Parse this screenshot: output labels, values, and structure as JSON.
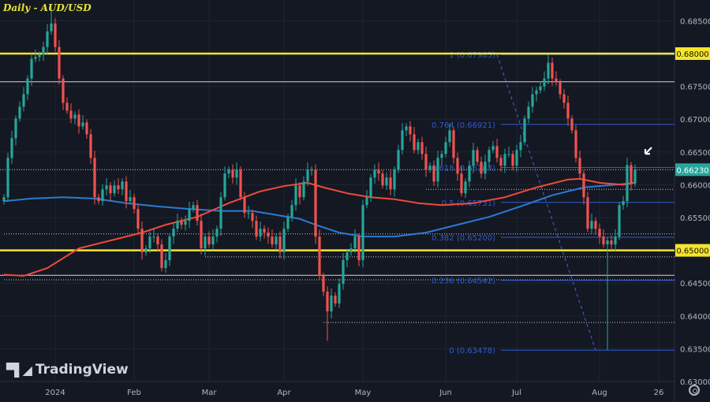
{
  "header": {
    "title": "Daily - AUD/USD"
  },
  "branding": {
    "logo_text": "TradingView"
  },
  "chart_data": {
    "type": "candlestick",
    "title": "Daily - AUD/USD",
    "ylim": [
      0.6275,
      0.6885
    ],
    "y_ticks": [
      "0.68500",
      "0.68000",
      "0.67500",
      "0.67000",
      "0.66500",
      "0.66000",
      "0.65500",
      "0.65000",
      "0.64500",
      "0.64000",
      "0.63500",
      "0.63000"
    ],
    "x_ticks": [
      {
        "label": "2024",
        "index": 13
      },
      {
        "label": "Feb",
        "index": 33
      },
      {
        "label": "Mar",
        "index": 52
      },
      {
        "label": "Apr",
        "index": 71
      },
      {
        "label": "May",
        "index": 91
      },
      {
        "label": "Jun",
        "index": 112
      },
      {
        "label": "Jul",
        "index": 130
      },
      {
        "label": "Aug",
        "index": 151
      },
      {
        "label": "26",
        "index": 166
      }
    ],
    "colors": {
      "up": "#26a69a",
      "down": "#ef5350",
      "ma_red": "#f04a3c",
      "ma_blue": "#2a7bd4",
      "key_level": "#f5e52a",
      "fib": "#2f5bd1",
      "background": "#141823"
    },
    "close": [
      0.6581,
      0.6641,
      0.6671,
      0.6701,
      0.6719,
      0.6738,
      0.6762,
      0.6792,
      0.6795,
      0.6798,
      0.681,
      0.6834,
      0.6846,
      0.681,
      0.6762,
      0.6725,
      0.6713,
      0.6701,
      0.6707,
      0.6689,
      0.6695,
      0.6677,
      0.6641,
      0.6581,
      0.6575,
      0.6593,
      0.6599,
      0.6587,
      0.6599,
      0.6593,
      0.6605,
      0.6575,
      0.6581,
      0.6563,
      0.6533,
      0.6497,
      0.6503,
      0.6521,
      0.6521,
      0.6509,
      0.6473,
      0.6485,
      0.6521,
      0.6533,
      0.6545,
      0.6539,
      0.6545,
      0.6563,
      0.6569,
      0.6545,
      0.6503,
      0.6521,
      0.6509,
      0.6521,
      0.6533,
      0.6581,
      0.6617,
      0.6623,
      0.6611,
      0.6623,
      0.6581,
      0.6557,
      0.6557,
      0.6545,
      0.6521,
      0.6533,
      0.6527,
      0.6521,
      0.6509,
      0.6521,
      0.6497,
      0.6533,
      0.6551,
      0.6569,
      0.6599,
      0.6581,
      0.6605,
      0.6623,
      0.6623,
      0.6521,
      0.6461,
      0.6437,
      0.6407,
      0.6431,
      0.6419,
      0.6449,
      0.6485,
      0.6497,
      0.6503,
      0.6521,
      0.6485,
      0.6569,
      0.6581,
      0.6611,
      0.6623,
      0.6617,
      0.6599,
      0.6611,
      0.6593,
      0.6623,
      0.6653,
      0.6683,
      0.6689,
      0.6677,
      0.6653,
      0.6665,
      0.6647,
      0.6623,
      0.6629,
      0.6605,
      0.6641,
      0.6647,
      0.6665,
      0.6683,
      0.6641,
      0.6617,
      0.6587,
      0.6605,
      0.6629,
      0.6653,
      0.6635,
      0.6617,
      0.6635,
      0.6653,
      0.6659,
      0.6641,
      0.6629,
      0.6647,
      0.6647,
      0.6629,
      0.6653,
      0.6665,
      0.6701,
      0.6719,
      0.6738,
      0.6744,
      0.675,
      0.6762,
      0.6786,
      0.6762,
      0.6756,
      0.6738,
      0.6725,
      0.6701,
      0.6683,
      0.6641,
      0.6617,
      0.6581,
      0.6533,
      0.6545,
      0.6533,
      0.6521,
      0.6509,
      0.6515,
      0.6509,
      0.6521,
      0.6569,
      0.6575,
      0.663,
      0.6602,
      0.6623
    ],
    "wick_extremes": [
      {
        "index": 12,
        "high": 0.6871
      },
      {
        "index": 82,
        "low": 0.6362
      },
      {
        "index": 138,
        "high": 0.6798
      },
      {
        "index": 153,
        "low": 0.6348
      }
    ],
    "ma_red": [
      [
        0,
        0.6463
      ],
      [
        5,
        0.6461
      ],
      [
        11,
        0.6473
      ],
      [
        19,
        0.6503
      ],
      [
        27,
        0.6515
      ],
      [
        35,
        0.6527
      ],
      [
        41,
        0.6539
      ],
      [
        49,
        0.6551
      ],
      [
        57,
        0.6572
      ],
      [
        65,
        0.659
      ],
      [
        71,
        0.6598
      ],
      [
        77,
        0.6603
      ],
      [
        81,
        0.6596
      ],
      [
        87,
        0.6587
      ],
      [
        93,
        0.6581
      ],
      [
        99,
        0.6578
      ],
      [
        105,
        0.6572
      ],
      [
        111,
        0.6569
      ],
      [
        119,
        0.6572
      ],
      [
        127,
        0.6581
      ],
      [
        135,
        0.6596
      ],
      [
        143,
        0.6608
      ],
      [
        146,
        0.6609
      ],
      [
        151,
        0.6603
      ],
      [
        157,
        0.66
      ],
      [
        160,
        0.6603
      ]
    ],
    "ma_blue": [
      [
        0,
        0.6575
      ],
      [
        7,
        0.6579
      ],
      [
        15,
        0.6581
      ],
      [
        23,
        0.6579
      ],
      [
        31,
        0.6572
      ],
      [
        39,
        0.6567
      ],
      [
        47,
        0.6563
      ],
      [
        55,
        0.656
      ],
      [
        63,
        0.656
      ],
      [
        69,
        0.6554
      ],
      [
        75,
        0.6548
      ],
      [
        79,
        0.6539
      ],
      [
        85,
        0.6527
      ],
      [
        91,
        0.6521
      ],
      [
        99,
        0.6521
      ],
      [
        107,
        0.6527
      ],
      [
        115,
        0.6539
      ],
      [
        123,
        0.6551
      ],
      [
        131,
        0.6567
      ],
      [
        139,
        0.6584
      ],
      [
        147,
        0.6596
      ],
      [
        155,
        0.66
      ],
      [
        160,
        0.6603
      ]
    ],
    "key_levels": [
      {
        "price": 0.68,
        "label": "0.68000"
      },
      {
        "price": 0.65,
        "label": "0.65000"
      }
    ],
    "current_price": {
      "price": 0.6623,
      "label": "0.66230"
    },
    "solid_lines": [
      0.6757,
      0.6462
    ],
    "dotted_lines": [
      {
        "price": 0.6525,
        "from_index": 0
      },
      {
        "price": 0.6593,
        "from_index": 107
      },
      {
        "price": 0.649,
        "from_index": 51
      },
      {
        "price": 0.6455,
        "from_index": 0
      },
      {
        "price": 0.639,
        "from_index": 81
      }
    ],
    "fibonacci": [
      {
        "ratio": "1",
        "price": 0.67985,
        "label": "1 (0.67985)"
      },
      {
        "ratio": "0.764",
        "price": 0.66921,
        "label": "0.764 (0.66921)"
      },
      {
        "ratio": "0.618",
        "price": 0.66263,
        "label": "0.618 (0.66263)"
      },
      {
        "ratio": "0.5",
        "price": 0.65731,
        "label": "0.5 (0.65731)"
      },
      {
        "ratio": "0.382",
        "price": 0.652,
        "label": "0.382 (0.65200)"
      },
      {
        "ratio": "0.236",
        "price": 0.64542,
        "label": "0.236 (0.64542)"
      },
      {
        "ratio": "0",
        "price": 0.63478,
        "label": "0 (0.63478)"
      }
    ],
    "fib_trendline": {
      "from": {
        "index": 125,
        "price": 0.67985
      },
      "to": {
        "index": 150,
        "price": 0.63478
      }
    },
    "annotation": {
      "type": "arrow",
      "index": 161,
      "price": 0.664
    }
  }
}
